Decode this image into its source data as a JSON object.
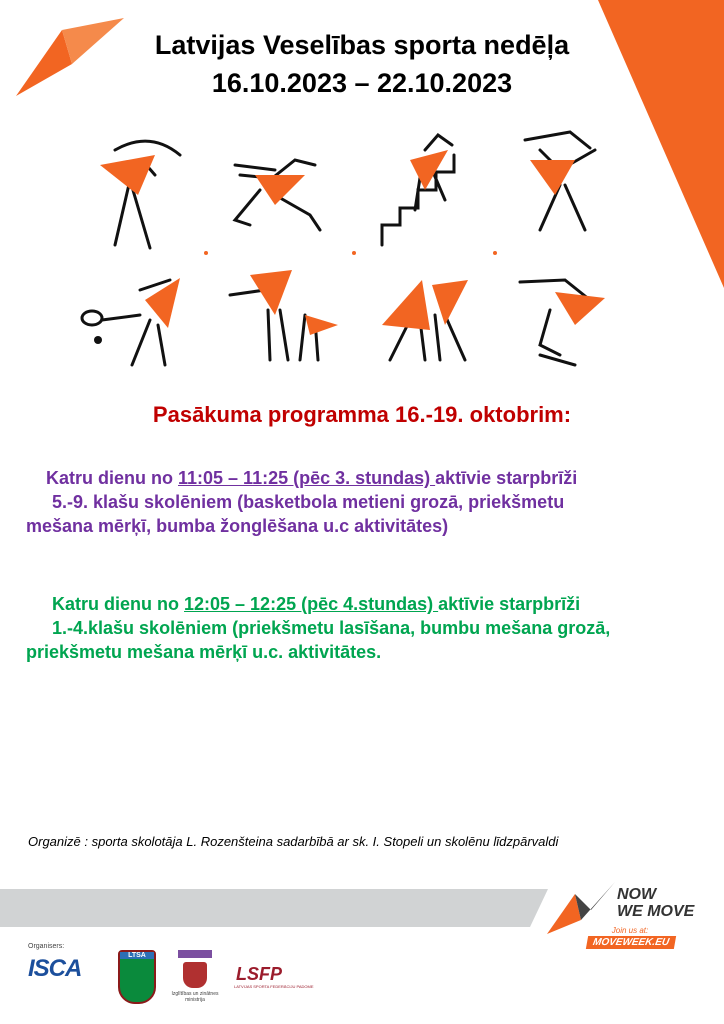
{
  "header": {
    "title_line1": "Latvijas Veselības sporta  nedēļa",
    "title_line2": "16.10.2023 – 22.10.2023"
  },
  "program": {
    "heading": "Pasākuma programma 16.-19. oktobrim:",
    "block1": {
      "prefix": "Katru dienu no ",
      "time": "11:05 – 11:25 (pēc 3. stundas) ",
      "line1_rest": "aktīvie starpbrīži",
      "line2": "5.-9. klašu skolēniem (basketbola metieni grozā, priekšmetu",
      "line3": "mešana mērķī, bumba  žonglēšana u.c aktivitātes)"
    },
    "block2": {
      "prefix": "Katru dienu no ",
      "time": "12:05 – 12:25 (pēc 4.stundas) ",
      "line1_rest": "aktīvie starpbrīži",
      "line2": "1.-4.klašu skolēniem (priekšmetu lasīšana, bumbu mešana grozā,",
      "line3": "priekšmetu mešana mērķī u.c. aktivitātes."
    },
    "organizer": "Organizē : sporta skolotāja L. Rozenšteina sadarbībā ar sk. I. Stopeli un skolēnu līdzpārvaldi"
  },
  "footer": {
    "organisers_label": "Organisers:",
    "logos": [
      "ISCA",
      "LTSA",
      "Izglītības un zinātnes ministrija",
      "LSFP"
    ],
    "lsfp_sub": "LATVIJAS SPORTA FEDERĀCIJU PADOME",
    "ministry_sub": "Izglītības un zinātnes ministrija",
    "nwm_line1": "NOW",
    "nwm_line2": "WE MOVE",
    "join": "Join us at:",
    "site": "MOVEWEEK.EU"
  },
  "colors": {
    "orange": "#f26522",
    "heading_red": "#c00000",
    "purple": "#7030a0",
    "green": "#00a550",
    "band_grey": "#d1d3d4"
  }
}
